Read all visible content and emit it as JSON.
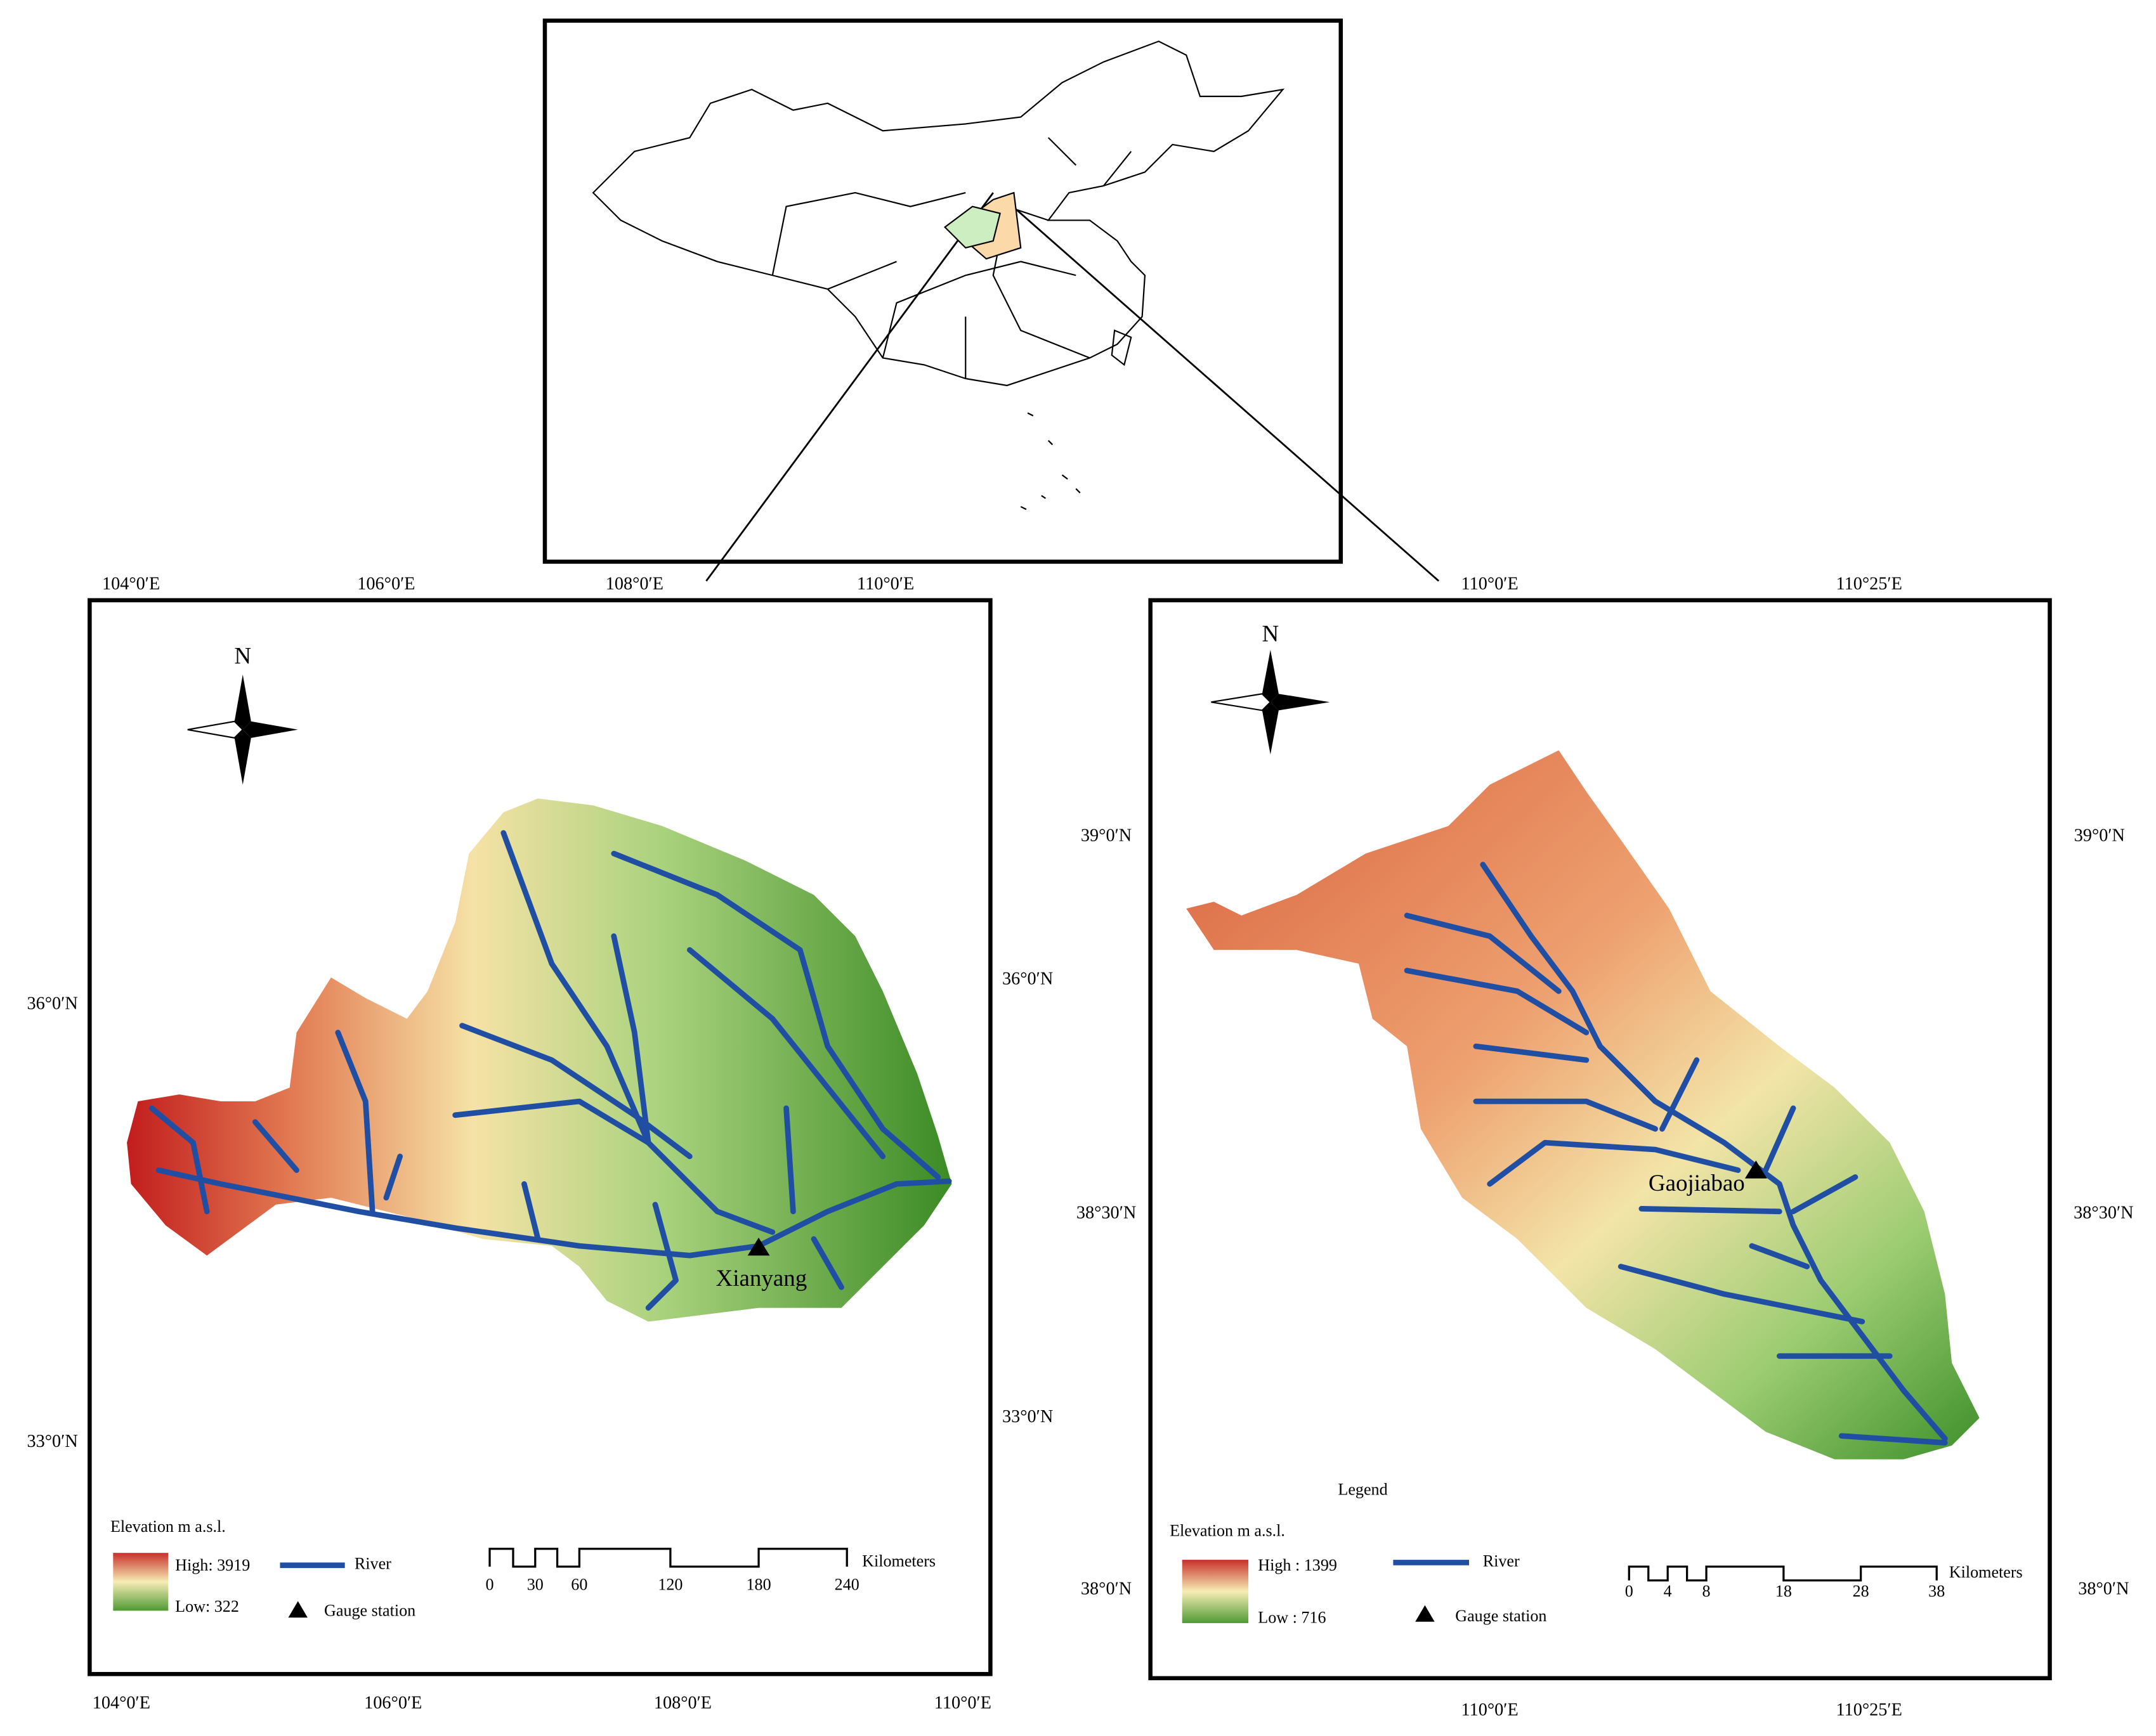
{
  "left_map": {
    "north": "N",
    "top_labels": [
      "104°0′E",
      "106°0′E",
      "108°0′E",
      "110°0′E"
    ],
    "bottom_labels": [
      "104°0′E",
      "106°0′E",
      "108°0′E",
      "110°0′E"
    ],
    "left_labels": [
      "36°0′N",
      "33°0′N"
    ],
    "right_labels": [
      "36°0′N",
      "33°0′N"
    ],
    "station": "Xianyang",
    "legend": {
      "title": "Elevation m a.s.l.",
      "high": "High: 3919",
      "low": "Low: 322",
      "river": "River",
      "gauge": "Gauge station",
      "scale_labels": [
        "0",
        "30",
        "60",
        "120",
        "180",
        "240"
      ],
      "scale_unit": "Kilometers"
    }
  },
  "right_map": {
    "north": "N",
    "top_labels": [
      "110°0′E",
      "110°25′E"
    ],
    "bottom_labels": [
      "110°0′E",
      "110°25′E"
    ],
    "left_labels": [
      "39°0′N",
      "38°30′N",
      "38°0′N"
    ],
    "right_labels": [
      "39°0′N",
      "38°30′N",
      "38°0′N"
    ],
    "station": "Gaojiabao",
    "legend": {
      "heading": "Legend",
      "title": "Elevation m a.s.l.",
      "high": "High : 1399",
      "low": "Low : 716",
      "river": "River",
      "gauge": "Gauge station",
      "scale_labels": [
        "0",
        "4",
        "8",
        "18",
        "28",
        "38"
      ],
      "scale_unit": "Kilometers"
    }
  }
}
